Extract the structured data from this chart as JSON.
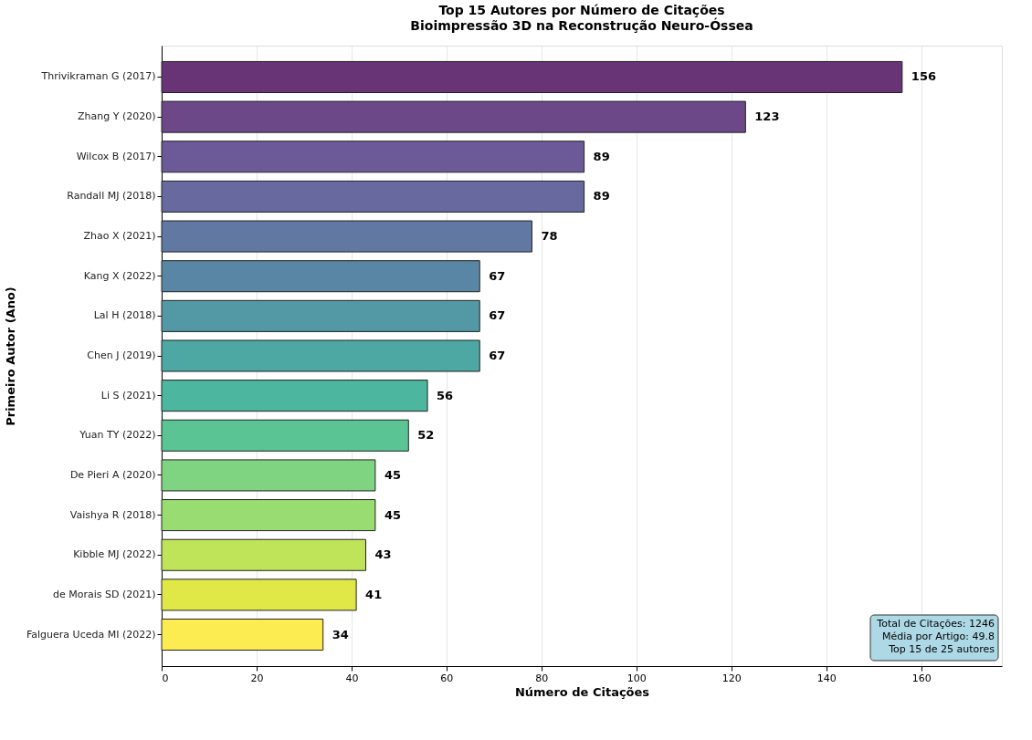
{
  "chart_data": {
    "type": "bar",
    "orientation": "horizontal",
    "title": "Top 15 Autores por Número de Citações",
    "subtitle": "Bioimpressão 3D na Reconstrução Neuro-Óssea",
    "xlabel": "Número de Citações",
    "ylabel": "Primeiro Autor (Ano)",
    "categories": [
      "Thrivikraman G (2017)",
      "Zhang Y (2020)",
      "Wilcox B (2017)",
      "Randall MJ (2018)",
      "Zhao X (2021)",
      "Kang X (2022)",
      "Lal H (2018)",
      "Chen J (2019)",
      "Li S (2021)",
      "Yuan TY (2022)",
      "De Pieri A (2020)",
      "Vaishya R (2018)",
      "Kibble MJ (2022)",
      "de Morais SD (2021)",
      "Falguera Uceda MI (2022)"
    ],
    "values": [
      156,
      123,
      89,
      89,
      78,
      67,
      67,
      67,
      56,
      52,
      45,
      45,
      43,
      41,
      34
    ],
    "colors": [
      "#693476",
      "#6d4889",
      "#6c5997",
      "#67699f",
      "#6178a3",
      "#5a86a5",
      "#5299a5",
      "#4da7a3",
      "#4db69e",
      "#5ac495",
      "#7ed481",
      "#99dc71",
      "#c0e459",
      "#e0e847",
      "#fdec51"
    ],
    "xlim": [
      0,
      177
    ],
    "xticks": [
      0,
      20,
      40,
      60,
      80,
      100,
      120,
      140,
      160
    ],
    "grid": "x",
    "data_labels": true,
    "legend": false,
    "annotations": [
      "Total de Citações: 1246\nMédia por Artigo: 49.8\nTop 15 de 25 autores"
    ]
  }
}
